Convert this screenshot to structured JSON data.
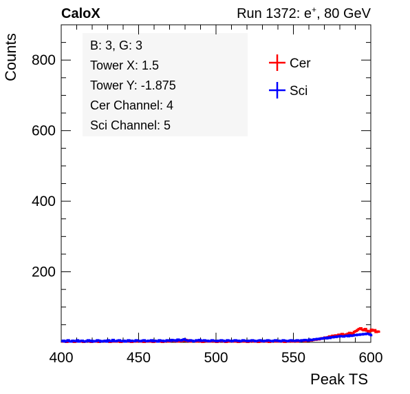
{
  "header": {
    "experiment": "CaloX",
    "run": "Run 1372: e",
    "run_sup": "+",
    "run_suffix": ", 80 GeV"
  },
  "info_box": {
    "lines": [
      "B: 3, G: 3",
      "Tower X: 1.5",
      "Tower Y: -1.875",
      "Cer Channel: 4",
      "Sci Channel: 5"
    ]
  },
  "legend": [
    {
      "name": "Cer",
      "color": "#ff0000"
    },
    {
      "name": "Sci",
      "color": "#0000ff"
    }
  ],
  "chart_data": {
    "type": "line",
    "xlabel": "Peak TS",
    "ylabel": "Counts",
    "xlim": [
      400,
      600
    ],
    "ylim": [
      0,
      900
    ],
    "x_ticks": [
      400,
      450,
      500,
      550,
      600
    ],
    "y_ticks": [
      200,
      400,
      600,
      800
    ],
    "grid": false,
    "legend_position": "top-right",
    "series": [
      {
        "name": "Cer",
        "color": "#ff0000",
        "x_start": 400,
        "x_step": 1,
        "values": [
          2,
          3,
          2,
          1,
          4,
          2,
          3,
          2,
          1,
          3,
          2,
          4,
          3,
          2,
          1,
          2,
          3,
          4,
          2,
          1,
          2,
          3,
          2,
          3,
          1,
          2,
          4,
          3,
          2,
          3,
          2,
          1,
          3,
          2,
          4,
          2,
          3,
          2,
          1,
          2,
          3,
          4,
          2,
          3,
          2,
          1,
          3,
          2,
          2,
          4,
          3,
          2,
          3,
          1,
          2,
          4,
          2,
          3,
          2,
          1,
          3,
          2,
          4,
          3,
          2,
          1,
          2,
          3,
          4,
          2,
          3,
          6,
          4,
          3,
          5,
          2,
          6,
          3,
          4,
          5,
          7,
          3,
          6,
          2,
          5,
          4,
          3,
          2,
          4,
          3,
          2,
          1,
          3,
          4,
          2,
          3,
          2,
          4,
          3,
          2,
          1,
          2,
          3,
          4,
          3,
          2,
          1,
          3,
          2,
          4,
          3,
          2,
          3,
          2,
          1,
          3,
          4,
          2,
          3,
          2,
          1,
          2,
          3,
          4,
          2,
          3,
          2,
          1,
          3,
          2,
          4,
          3,
          2,
          3,
          1,
          2,
          4,
          3,
          2,
          3,
          2,
          4,
          3,
          2,
          1,
          3,
          2,
          4,
          3,
          2,
          3,
          4,
          2,
          3,
          5,
          4,
          6,
          3,
          5,
          4,
          7,
          5,
          6,
          8,
          7,
          9,
          8,
          10,
          12,
          11,
          14,
          13,
          15,
          17,
          16,
          19,
          18,
          20,
          19,
          22,
          21,
          24,
          22,
          20,
          23,
          25,
          27,
          24,
          26,
          30,
          32,
          35,
          38,
          40,
          36,
          34,
          38,
          33,
          30,
          32,
          36,
          33,
          35,
          29,
          31,
          30
        ]
      },
      {
        "name": "Sci",
        "color": "#0000ff",
        "x_start": 400,
        "x_step": 1,
        "values": [
          3,
          5,
          2,
          4,
          6,
          3,
          2,
          5,
          4,
          3,
          6,
          2,
          4,
          5,
          3,
          2,
          4,
          6,
          3,
          5,
          2,
          4,
          3,
          6,
          5,
          2,
          4,
          3,
          5,
          2,
          6,
          4,
          3,
          7,
          4,
          3,
          5,
          6,
          4,
          3,
          5,
          2,
          4,
          6,
          3,
          5,
          4,
          3,
          6,
          5,
          4,
          3,
          5,
          6,
          4,
          3,
          5,
          4,
          6,
          3,
          5,
          4,
          2,
          6,
          4,
          5,
          3,
          4,
          6,
          5,
          4,
          7,
          5,
          6,
          4,
          8,
          6,
          5,
          7,
          9,
          6,
          5,
          4,
          6,
          5,
          3,
          4,
          6,
          5,
          7,
          4,
          5,
          6,
          4,
          5,
          3,
          4,
          6,
          5,
          4,
          3,
          5,
          4,
          6,
          5,
          3,
          4,
          6,
          5,
          4,
          3,
          5,
          6,
          4,
          5,
          3,
          4,
          6,
          5,
          4,
          3,
          5,
          4,
          6,
          5,
          3,
          4,
          5,
          6,
          4,
          3,
          5,
          4,
          6,
          5,
          4,
          3,
          5,
          6,
          4,
          5,
          3,
          4,
          6,
          5,
          4,
          3,
          5,
          6,
          4,
          5,
          4,
          6,
          5,
          4,
          6,
          5,
          7,
          6,
          5,
          8,
          6,
          7,
          9,
          8,
          10,
          9,
          11,
          10,
          12,
          13,
          11,
          14,
          12,
          15,
          14,
          16,
          15,
          17,
          16,
          18,
          17,
          16,
          18,
          19,
          17,
          20,
          18,
          19,
          21,
          20,
          22,
          21,
          23,
          22,
          24,
          23,
          25,
          24,
          22,
          20
        ]
      }
    ]
  }
}
